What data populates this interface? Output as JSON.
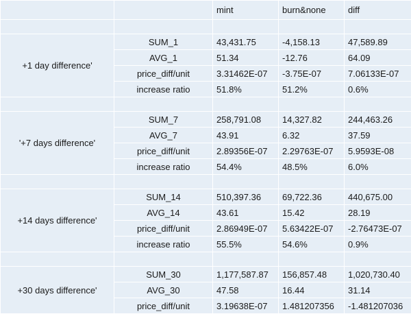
{
  "header": {
    "col1": "",
    "col2": "mint",
    "col3": "burn&none",
    "col4": "diff"
  },
  "groups": [
    {
      "label": "+1 day difference'",
      "rows": [
        [
          "SUM_1",
          "43,431.75",
          "-4,158.13",
          "47,589.89"
        ],
        [
          "AVG_1",
          "51.34",
          "-12.76",
          "64.09"
        ],
        [
          "price_diff/unit",
          "3.31462E-07",
          "-3.75E-07",
          "7.06133E-07"
        ],
        [
          "increase ratio",
          "51.8%",
          "51.2%",
          "0.6%"
        ]
      ]
    },
    {
      "label": "'+7 days difference'",
      "rows": [
        [
          "SUM_7",
          "258,791.08",
          "14,327.82",
          "244,463.26"
        ],
        [
          "AVG_7",
          "43.91",
          "6.32",
          "37.59"
        ],
        [
          "price_diff/unit",
          "2.89356E-07",
          "2.29763E-07",
          "5.9593E-08"
        ],
        [
          "increase ratio",
          "54.4%",
          "48.5%",
          "6.0%"
        ]
      ]
    },
    {
      "label": "+14 days difference'",
      "rows": [
        [
          "SUM_14",
          "510,397.36",
          "69,722.36",
          "440,675.00"
        ],
        [
          "AVG_14",
          "43.61",
          "15.42",
          "28.19"
        ],
        [
          "price_diff/unit",
          "2.86949E-07",
          "5.63422E-07",
          "-2.76473E-07"
        ],
        [
          "increase ratio",
          "55.5%",
          "54.6%",
          "0.9%"
        ]
      ]
    },
    {
      "label": "+30 days difference'",
      "rows": [
        [
          "SUM_30",
          "1,177,587.87",
          "156,857.48",
          "1,020,730.40"
        ],
        [
          "AVG_30",
          "47.58",
          "16.44",
          "31.14"
        ],
        [
          "price_diff/unit",
          "3.19638E-07",
          "1.481207356",
          "-1.481207036"
        ]
      ]
    }
  ]
}
